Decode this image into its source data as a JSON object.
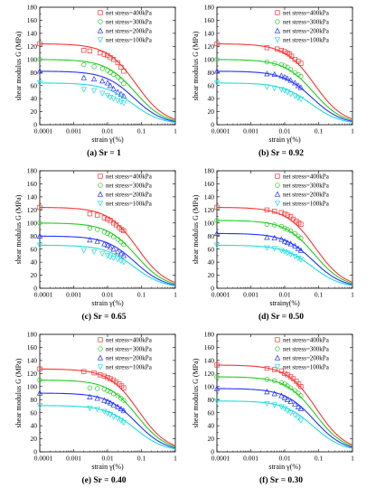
{
  "figure": {
    "ylabel": "shear modulus G (MPa)",
    "legend_entries": [
      "net stress=400kPa",
      "net stress=300kPa",
      "net stress=200kPa",
      "net stress=100kPa"
    ],
    "series_colors": [
      "#ff3333",
      "#22cc22",
      "#2233ff",
      "#22dddd"
    ],
    "marker_shapes": [
      "square",
      "circle",
      "triangle-up",
      "triangle-down"
    ]
  },
  "chart_data": [
    {
      "type": "scatter",
      "caption": "(a) Sr = 1",
      "xlabel": "strain γ(%)",
      "ylabel": "shear modulus G (MPa)",
      "xscale": "log",
      "xlim": [
        0.0001,
        1
      ],
      "ylim": [
        0,
        180
      ],
      "xticks": [
        "0.0001",
        "0.001",
        "0.01",
        "0.1",
        "1"
      ],
      "yticks": [
        "0",
        "20",
        "40",
        "60",
        "80",
        "100",
        "120",
        "140",
        "160",
        "180"
      ],
      "legend_position": "top-right",
      "series": [
        {
          "name": "net stress=400kPa",
          "G0": 124,
          "gamma_ref": 0.07,
          "x": [
            0.0001,
            0.002,
            0.003,
            0.006,
            0.008,
            0.01,
            0.012,
            0.015,
            0.02,
            0.025,
            0.03
          ],
          "y": [
            124,
            114,
            113,
            110,
            108,
            106,
            103,
            100,
            95,
            88,
            82
          ]
        },
        {
          "name": "net stress=300kPa",
          "G0": 100,
          "gamma_ref": 0.065,
          "x": [
            0.0001,
            0.002,
            0.004,
            0.007,
            0.01,
            0.012,
            0.015,
            0.02,
            0.025,
            0.03
          ],
          "y": [
            100,
            92,
            89,
            86,
            83,
            80,
            77,
            73,
            68,
            63
          ]
        },
        {
          "name": "net stress=200kPa",
          "G0": 82,
          "gamma_ref": 0.06,
          "x": [
            0.0001,
            0.002,
            0.004,
            0.007,
            0.01,
            0.012,
            0.015,
            0.02,
            0.025,
            0.03
          ],
          "y": [
            82,
            72,
            70,
            67,
            64,
            60,
            55,
            50,
            47,
            44
          ]
        },
        {
          "name": "net stress=100kPa",
          "G0": 64,
          "gamma_ref": 0.055,
          "x": [
            0.0001,
            0.002,
            0.004,
            0.007,
            0.01,
            0.012,
            0.015,
            0.02,
            0.025,
            0.03
          ],
          "y": [
            64,
            54,
            52,
            48,
            45,
            42,
            40,
            37,
            35,
            33
          ]
        }
      ]
    },
    {
      "type": "scatter",
      "caption": "(b) Sr = 0.92",
      "xlabel": "strain γ(%)",
      "ylabel": "shear modulus G (MPa)",
      "xscale": "log",
      "xlim": [
        0.0001,
        1
      ],
      "ylim": [
        0,
        180
      ],
      "xticks": [
        "0.0001",
        "0.001",
        "0.01",
        "0.1",
        "1"
      ],
      "yticks": [
        "0",
        "20",
        "40",
        "60",
        "80",
        "100",
        "120",
        "140",
        "160",
        "180"
      ],
      "legend_position": "top-right",
      "series": [
        {
          "name": "net stress=400kPa",
          "G0": 124,
          "gamma_ref": 0.075,
          "x": [
            0.0001,
            0.003,
            0.006,
            0.008,
            0.01,
            0.012,
            0.014,
            0.016,
            0.02,
            0.025,
            0.03
          ],
          "y": [
            124,
            118,
            116,
            114,
            112,
            110,
            108,
            105,
            100,
            97,
            94
          ]
        },
        {
          "name": "net stress=300kPa",
          "G0": 100,
          "gamma_ref": 0.07,
          "x": [
            0.0001,
            0.003,
            0.005,
            0.008,
            0.01,
            0.012,
            0.015,
            0.02,
            0.025,
            0.03
          ],
          "y": [
            100,
            96,
            94,
            92,
            90,
            88,
            85,
            80,
            77,
            74
          ]
        },
        {
          "name": "net stress=200kPa",
          "G0": 82,
          "gamma_ref": 0.065,
          "x": [
            0.0001,
            0.003,
            0.005,
            0.008,
            0.01,
            0.012,
            0.015,
            0.02,
            0.025,
            0.03
          ],
          "y": [
            82,
            78,
            77,
            75,
            73,
            71,
            68,
            64,
            60,
            57
          ]
        },
        {
          "name": "net stress=100kPa",
          "G0": 64,
          "gamma_ref": 0.06,
          "x": [
            0.0001,
            0.003,
            0.005,
            0.008,
            0.01,
            0.012,
            0.015,
            0.02,
            0.025,
            0.03
          ],
          "y": [
            64,
            58,
            56,
            54,
            52,
            50,
            47,
            44,
            41,
            39
          ]
        }
      ]
    },
    {
      "type": "scatter",
      "caption": "(c) Sr = 0.65",
      "xlabel": "strain γ(%)",
      "ylabel": "shear modulus G (MPa)",
      "xscale": "log",
      "xlim": [
        0.0001,
        1
      ],
      "ylim": [
        0,
        180
      ],
      "xticks": [
        "0.0001",
        "0.001",
        "0.01",
        "0.1",
        "1"
      ],
      "yticks": [
        "0",
        "20",
        "40",
        "60",
        "80",
        "100",
        "120",
        "140",
        "160",
        "180"
      ],
      "legend_position": "top-right",
      "series": [
        {
          "name": "net stress=400kPa",
          "G0": 124,
          "gamma_ref": 0.075,
          "x": [
            0.0001,
            0.003,
            0.005,
            0.008,
            0.01,
            0.012,
            0.015,
            0.018,
            0.022,
            0.026,
            0.03
          ],
          "y": [
            124,
            114,
            112,
            108,
            106,
            104,
            100,
            97,
            93,
            90,
            88
          ]
        },
        {
          "name": "net stress=300kPa",
          "G0": 100,
          "gamma_ref": 0.07,
          "x": [
            0.0001,
            0.003,
            0.005,
            0.008,
            0.01,
            0.012,
            0.015,
            0.02,
            0.025,
            0.03
          ],
          "y": [
            100,
            92,
            90,
            86,
            84,
            82,
            79,
            75,
            71,
            67
          ]
        },
        {
          "name": "net stress=200kPa",
          "G0": 80,
          "gamma_ref": 0.065,
          "x": [
            0.0001,
            0.003,
            0.005,
            0.008,
            0.01,
            0.012,
            0.015,
            0.02,
            0.025,
            0.03
          ],
          "y": [
            80,
            74,
            72,
            68,
            66,
            63,
            60,
            56,
            53,
            50
          ]
        },
        {
          "name": "net stress=100kPa",
          "G0": 66,
          "gamma_ref": 0.06,
          "x": [
            0.0001,
            0.002,
            0.004,
            0.007,
            0.01,
            0.012,
            0.015,
            0.02,
            0.025,
            0.03
          ],
          "y": [
            66,
            58,
            56,
            53,
            50,
            48,
            46,
            44,
            42,
            40
          ]
        }
      ]
    },
    {
      "type": "scatter",
      "caption": "(d) Sr = 0.50",
      "xlabel": "strainγ(%)",
      "ylabel": "shear modulus G (MPa)",
      "xscale": "log",
      "xlim": [
        0.0001,
        1
      ],
      "ylim": [
        0,
        180
      ],
      "xticks": [
        "0.0001",
        "0.001",
        "0.01",
        "0.1",
        "1"
      ],
      "yticks": [
        "0",
        "20",
        "40",
        "60",
        "80",
        "100",
        "120",
        "140",
        "160",
        "180"
      ],
      "legend_position": "top-right",
      "series": [
        {
          "name": "net stress=400kPa",
          "G0": 124,
          "gamma_ref": 0.08,
          "x": [
            0.0001,
            0.003,
            0.005,
            0.008,
            0.01,
            0.012,
            0.015,
            0.018,
            0.022,
            0.026,
            0.03
          ],
          "y": [
            124,
            120,
            118,
            116,
            114,
            112,
            110,
            106,
            103,
            100,
            98
          ]
        },
        {
          "name": "net stress=300kPa",
          "G0": 104,
          "gamma_ref": 0.075,
          "x": [
            0.0001,
            0.003,
            0.005,
            0.008,
            0.01,
            0.012,
            0.015,
            0.02,
            0.025,
            0.03
          ],
          "y": [
            104,
            98,
            97,
            95,
            92,
            90,
            88,
            84,
            80,
            77
          ]
        },
        {
          "name": "net stress=200kPa",
          "G0": 84,
          "gamma_ref": 0.07,
          "x": [
            0.0001,
            0.003,
            0.005,
            0.008,
            0.01,
            0.012,
            0.015,
            0.02,
            0.025,
            0.03
          ],
          "y": [
            84,
            78,
            77,
            75,
            72,
            70,
            68,
            65,
            61,
            58
          ]
        },
        {
          "name": "net stress=100kPa",
          "G0": 66,
          "gamma_ref": 0.065,
          "x": [
            0.0001,
            0.003,
            0.005,
            0.008,
            0.01,
            0.012,
            0.015,
            0.02,
            0.025,
            0.03
          ],
          "y": [
            66,
            62,
            61,
            58,
            56,
            54,
            52,
            49,
            46,
            44
          ]
        }
      ]
    },
    {
      "type": "scatter",
      "caption": "(e) Sr = 0.40",
      "xlabel": "strain γ(%)",
      "ylabel": "shear modulus G (MPa)",
      "xscale": "log",
      "xlim": [
        0.0001,
        1
      ],
      "ylim": [
        0,
        180
      ],
      "xticks": [
        "0.0001",
        "0.001",
        "0.01",
        "0.1",
        "1"
      ],
      "yticks": [
        "0",
        "20",
        "40",
        "60",
        "80",
        "100",
        "120",
        "140",
        "160",
        "180"
      ],
      "legend_position": "top-right",
      "series": [
        {
          "name": "net stress=400kPa",
          "G0": 127,
          "gamma_ref": 0.08,
          "x": [
            0.0001,
            0.002,
            0.004,
            0.006,
            0.008,
            0.01,
            0.012,
            0.015,
            0.018,
            0.022,
            0.026,
            0.03
          ],
          "y": [
            127,
            123,
            121,
            118,
            116,
            114,
            112,
            110,
            107,
            104,
            101,
            98
          ]
        },
        {
          "name": "net stress=300kPa",
          "G0": 110,
          "gamma_ref": 0.075,
          "x": [
            0.0001,
            0.003,
            0.005,
            0.008,
            0.01,
            0.012,
            0.015,
            0.02,
            0.025,
            0.03
          ],
          "y": [
            110,
            98,
            97,
            96,
            94,
            92,
            89,
            86,
            82,
            79
          ]
        },
        {
          "name": "net stress=200kPa",
          "G0": 90,
          "gamma_ref": 0.07,
          "x": [
            0.0001,
            0.003,
            0.005,
            0.008,
            0.01,
            0.012,
            0.015,
            0.02,
            0.025,
            0.03
          ],
          "y": [
            90,
            84,
            82,
            79,
            77,
            75,
            72,
            69,
            66,
            63
          ]
        },
        {
          "name": "net stress=100kPa",
          "G0": 71,
          "gamma_ref": 0.065,
          "x": [
            0.0001,
            0.003,
            0.005,
            0.008,
            0.01,
            0.012,
            0.015,
            0.02,
            0.025,
            0.03
          ],
          "y": [
            71,
            67,
            65,
            62,
            59,
            57,
            54,
            51,
            48,
            45
          ]
        }
      ]
    },
    {
      "type": "scatter",
      "caption": "(f) Sr = 0.30",
      "xlabel": "strain γ(%)",
      "ylabel": "shear modulus G (MPa)",
      "xscale": "log",
      "xlim": [
        0.0001,
        1
      ],
      "ylim": [
        0,
        180
      ],
      "xticks": [
        "0.0001",
        "0.001",
        "0.01",
        "0.1",
        "1"
      ],
      "yticks": [
        "0",
        "20",
        "40",
        "60",
        "80",
        "100",
        "120",
        "140",
        "160",
        "180"
      ],
      "legend_position": "top-right",
      "series": [
        {
          "name": "net stress=400kPa",
          "G0": 133,
          "gamma_ref": 0.085,
          "x": [
            0.0001,
            0.003,
            0.005,
            0.008,
            0.01,
            0.012,
            0.015,
            0.018,
            0.022,
            0.026,
            0.03
          ],
          "y": [
            133,
            128,
            126,
            124,
            120,
            118,
            115,
            112,
            108,
            104,
            100
          ]
        },
        {
          "name": "net stress=300kPa",
          "G0": 115,
          "gamma_ref": 0.08,
          "x": [
            0.0001,
            0.003,
            0.005,
            0.008,
            0.01,
            0.012,
            0.015,
            0.02,
            0.025,
            0.03
          ],
          "y": [
            115,
            111,
            109,
            106,
            104,
            101,
            98,
            94,
            90,
            86
          ]
        },
        {
          "name": "net stress=200kPa",
          "G0": 97,
          "gamma_ref": 0.075,
          "x": [
            0.0001,
            0.003,
            0.005,
            0.008,
            0.01,
            0.012,
            0.015,
            0.02,
            0.025,
            0.03
          ],
          "y": [
            97,
            92,
            89,
            86,
            83,
            80,
            77,
            73,
            69,
            66
          ]
        },
        {
          "name": "net stress=100kPa",
          "G0": 78,
          "gamma_ref": 0.07,
          "x": [
            0.0001,
            0.003,
            0.005,
            0.008,
            0.01,
            0.012,
            0.015,
            0.02,
            0.025,
            0.03
          ],
          "y": [
            78,
            74,
            72,
            69,
            66,
            63,
            60,
            56,
            52,
            48
          ]
        }
      ]
    }
  ]
}
